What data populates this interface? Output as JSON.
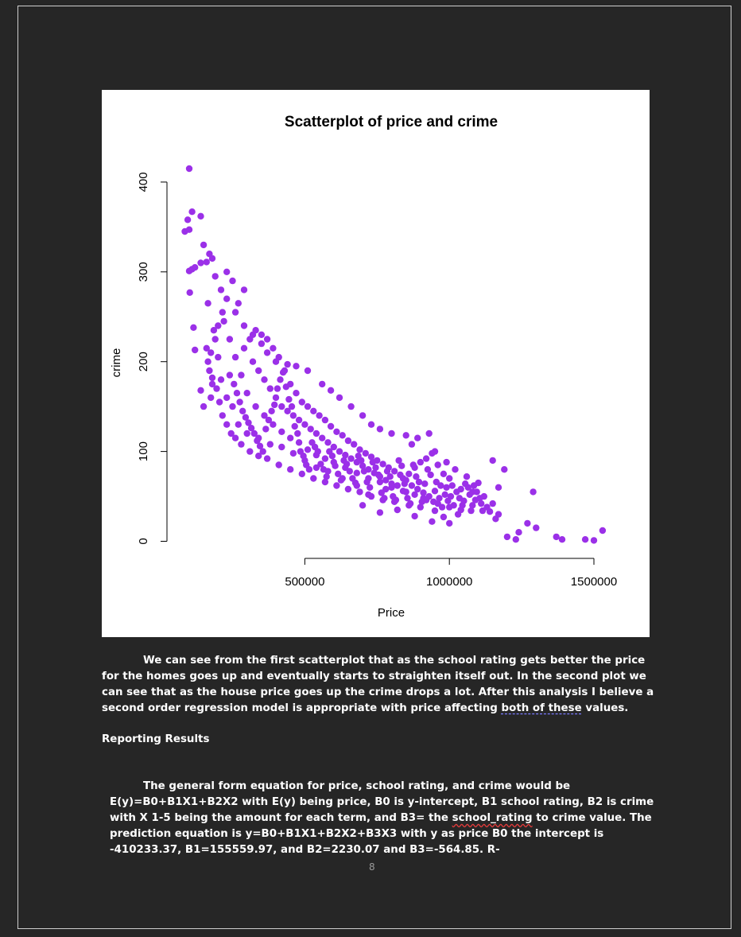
{
  "chart_data": {
    "type": "scatter",
    "title": "Scatterplot of price and crime",
    "xlabel": "Price",
    "ylabel": "crime",
    "xlim": [
      0,
      1550000
    ],
    "ylim": [
      0,
      415
    ],
    "xticks": [
      500000,
      1000000,
      1500000
    ],
    "xtick_labels": [
      "500000",
      "1000000",
      "1500000"
    ],
    "yticks": [
      0,
      100,
      200,
      300,
      400
    ],
    "ytick_labels": [
      "0",
      "100",
      "200",
      "300",
      "400"
    ],
    "grid": false,
    "legend": "none",
    "point_color": "#9b30e8",
    "points": [
      [
        100000,
        415
      ],
      [
        110000,
        367
      ],
      [
        140000,
        362
      ],
      [
        95000,
        358
      ],
      [
        85000,
        345
      ],
      [
        100000,
        347
      ],
      [
        110000,
        303
      ],
      [
        120000,
        305
      ],
      [
        100000,
        301
      ],
      [
        102000,
        277
      ],
      [
        150000,
        330
      ],
      [
        170000,
        320
      ],
      [
        180000,
        315
      ],
      [
        160000,
        311
      ],
      [
        140000,
        310
      ],
      [
        190000,
        295
      ],
      [
        210000,
        280
      ],
      [
        230000,
        270
      ],
      [
        165000,
        265
      ],
      [
        115000,
        238
      ],
      [
        120000,
        213
      ],
      [
        140000,
        168
      ],
      [
        150000,
        150
      ],
      [
        175000,
        160
      ],
      [
        180000,
        175
      ],
      [
        260000,
        255
      ],
      [
        290000,
        240
      ],
      [
        320000,
        230
      ],
      [
        350000,
        220
      ],
      [
        370000,
        210
      ],
      [
        400000,
        200
      ],
      [
        440000,
        197
      ],
      [
        470000,
        195
      ],
      [
        510000,
        190
      ],
      [
        560000,
        175
      ],
      [
        590000,
        168
      ],
      [
        620000,
        160
      ],
      [
        660000,
        150
      ],
      [
        700000,
        140
      ],
      [
        730000,
        130
      ],
      [
        760000,
        125
      ],
      [
        800000,
        120
      ],
      [
        850000,
        118
      ],
      [
        870000,
        108
      ],
      [
        890000,
        115
      ],
      [
        930000,
        120
      ],
      [
        950000,
        100
      ],
      [
        990000,
        88
      ],
      [
        1020000,
        80
      ],
      [
        1060000,
        72
      ],
      [
        1100000,
        65
      ],
      [
        1150000,
        90
      ],
      [
        1170000,
        60
      ],
      [
        1190000,
        80
      ],
      [
        1290000,
        55
      ],
      [
        1160000,
        25
      ],
      [
        1200000,
        5
      ],
      [
        1230000,
        2
      ],
      [
        1240000,
        10
      ],
      [
        1270000,
        20
      ],
      [
        1300000,
        15
      ],
      [
        1370000,
        5
      ],
      [
        1390000,
        2
      ],
      [
        1470000,
        2
      ],
      [
        1500000,
        1
      ],
      [
        1530000,
        12
      ],
      [
        700000,
        40
      ],
      [
        760000,
        32
      ],
      [
        820000,
        35
      ],
      [
        880000,
        28
      ],
      [
        940000,
        22
      ],
      [
        980000,
        27
      ],
      [
        1000000,
        20
      ],
      [
        1030000,
        30
      ],
      [
        1050000,
        45
      ],
      [
        1080000,
        40
      ],
      [
        1120000,
        50
      ],
      [
        990000,
        60
      ],
      [
        910000,
        48
      ],
      [
        850000,
        55
      ],
      [
        780000,
        58
      ],
      [
        720000,
        52
      ],
      [
        680000,
        62
      ],
      [
        630000,
        70
      ],
      [
        580000,
        78
      ],
      [
        540000,
        82
      ],
      [
        500000,
        90
      ],
      [
        460000,
        98
      ],
      [
        420000,
        105
      ],
      [
        380000,
        108
      ],
      [
        340000,
        115
      ],
      [
        300000,
        120
      ],
      [
        270000,
        130
      ],
      [
        250000,
        150
      ],
      [
        230000,
        160
      ],
      [
        210000,
        180
      ],
      [
        200000,
        205
      ],
      [
        190000,
        225
      ],
      [
        220000,
        245
      ],
      [
        240000,
        225
      ],
      [
        260000,
        205
      ],
      [
        280000,
        185
      ],
      [
        300000,
        165
      ],
      [
        330000,
        150
      ],
      [
        360000,
        140
      ],
      [
        390000,
        130
      ],
      [
        420000,
        122
      ],
      [
        450000,
        115
      ],
      [
        480000,
        110
      ],
      [
        510000,
        102
      ],
      [
        540000,
        96
      ],
      [
        570000,
        92
      ],
      [
        600000,
        88
      ],
      [
        640000,
        82
      ],
      [
        680000,
        76
      ],
      [
        720000,
        70
      ],
      [
        760000,
        66
      ],
      [
        800000,
        60
      ],
      [
        840000,
        56
      ],
      [
        880000,
        52
      ],
      [
        920000,
        46
      ],
      [
        960000,
        42
      ],
      [
        1000000,
        38
      ],
      [
        1040000,
        35
      ],
      [
        1080000,
        55
      ],
      [
        1110000,
        42
      ],
      [
        270000,
        265
      ],
      [
        290000,
        280
      ],
      [
        250000,
        290
      ],
      [
        230000,
        300
      ],
      [
        215000,
        255
      ],
      [
        200000,
        240
      ],
      [
        185000,
        235
      ],
      [
        175000,
        210
      ],
      [
        165000,
        200
      ],
      [
        160000,
        215
      ],
      [
        170000,
        190
      ],
      [
        180000,
        182
      ],
      [
        195000,
        170
      ],
      [
        205000,
        155
      ],
      [
        215000,
        140
      ],
      [
        230000,
        130
      ],
      [
        245000,
        120
      ],
      [
        260000,
        115
      ],
      [
        280000,
        108
      ],
      [
        310000,
        100
      ],
      [
        340000,
        95
      ],
      [
        370000,
        92
      ],
      [
        410000,
        85
      ],
      [
        450000,
        80
      ],
      [
        490000,
        75
      ],
      [
        530000,
        70
      ],
      [
        570000,
        66
      ],
      [
        610000,
        62
      ],
      [
        650000,
        58
      ],
      [
        690000,
        55
      ],
      [
        730000,
        50
      ],
      [
        770000,
        46
      ],
      [
        810000,
        44
      ],
      [
        860000,
        40
      ],
      [
        900000,
        38
      ],
      [
        950000,
        34
      ],
      [
        320000,
        200
      ],
      [
        340000,
        190
      ],
      [
        360000,
        180
      ],
      [
        380000,
        170
      ],
      [
        400000,
        160
      ],
      [
        420000,
        150
      ],
      [
        440000,
        145
      ],
      [
        460000,
        140
      ],
      [
        480000,
        135
      ],
      [
        500000,
        130
      ],
      [
        520000,
        125
      ],
      [
        540000,
        120
      ],
      [
        560000,
        115
      ],
      [
        580000,
        110
      ],
      [
        600000,
        105
      ],
      [
        620000,
        100
      ],
      [
        640000,
        96
      ],
      [
        660000,
        92
      ],
      [
        680000,
        88
      ],
      [
        700000,
        84
      ],
      [
        720000,
        80
      ],
      [
        740000,
        76
      ],
      [
        760000,
        72
      ],
      [
        780000,
        68
      ],
      [
        800000,
        64
      ],
      [
        820000,
        62
      ],
      [
        840000,
        70
      ],
      [
        860000,
        75
      ],
      [
        880000,
        82
      ],
      [
        900000,
        88
      ],
      [
        920000,
        92
      ],
      [
        940000,
        98
      ],
      [
        960000,
        85
      ],
      [
        980000,
        75
      ],
      [
        1010000,
        62
      ],
      [
        1040000,
        58
      ],
      [
        1070000,
        52
      ],
      [
        1090000,
        46
      ],
      [
        1130000,
        38
      ],
      [
        1140000,
        33
      ],
      [
        1150000,
        42
      ],
      [
        1170000,
        30
      ],
      [
        290000,
        215
      ],
      [
        310000,
        225
      ],
      [
        330000,
        235
      ],
      [
        350000,
        230
      ],
      [
        370000,
        225
      ],
      [
        390000,
        215
      ],
      [
        410000,
        205
      ],
      [
        430000,
        190
      ],
      [
        450000,
        175
      ],
      [
        470000,
        165
      ],
      [
        490000,
        155
      ],
      [
        510000,
        150
      ],
      [
        530000,
        145
      ],
      [
        550000,
        140
      ],
      [
        570000,
        135
      ],
      [
        590000,
        128
      ],
      [
        610000,
        122
      ],
      [
        630000,
        118
      ],
      [
        650000,
        112
      ],
      [
        670000,
        108
      ],
      [
        690000,
        102
      ],
      [
        710000,
        98
      ],
      [
        730000,
        94
      ],
      [
        750000,
        90
      ],
      [
        770000,
        86
      ],
      [
        790000,
        82
      ],
      [
        810000,
        78
      ],
      [
        830000,
        74
      ],
      [
        850000,
        68
      ],
      [
        870000,
        62
      ],
      [
        890000,
        58
      ],
      [
        910000,
        54
      ],
      [
        930000,
        50
      ],
      [
        950000,
        56
      ],
      [
        970000,
        62
      ],
      [
        1000000,
        70
      ],
      [
        240000,
        185
      ],
      [
        255000,
        175
      ],
      [
        265000,
        165
      ],
      [
        275000,
        155
      ],
      [
        285000,
        145
      ],
      [
        295000,
        138
      ],
      [
        305000,
        132
      ],
      [
        315000,
        126
      ],
      [
        325000,
        120
      ],
      [
        335000,
        112
      ],
      [
        345000,
        106
      ],
      [
        355000,
        100
      ],
      [
        365000,
        125
      ],
      [
        375000,
        135
      ],
      [
        385000,
        145
      ],
      [
        395000,
        152
      ],
      [
        405000,
        170
      ],
      [
        415000,
        180
      ],
      [
        425000,
        188
      ],
      [
        435000,
        172
      ],
      [
        445000,
        158
      ],
      [
        455000,
        150
      ],
      [
        465000,
        128
      ],
      [
        475000,
        120
      ],
      [
        485000,
        100
      ],
      [
        495000,
        95
      ],
      [
        505000,
        85
      ],
      [
        515000,
        80
      ],
      [
        525000,
        110
      ],
      [
        535000,
        105
      ],
      [
        545000,
        100
      ],
      [
        555000,
        86
      ],
      [
        565000,
        80
      ],
      [
        575000,
        72
      ],
      [
        585000,
        100
      ],
      [
        595000,
        95
      ],
      [
        605000,
        84
      ],
      [
        615000,
        75
      ],
      [
        625000,
        68
      ],
      [
        635000,
        90
      ],
      [
        645000,
        86
      ],
      [
        655000,
        78
      ],
      [
        665000,
        70
      ],
      [
        675000,
        65
      ],
      [
        685000,
        95
      ],
      [
        695000,
        90
      ],
      [
        705000,
        78
      ],
      [
        715000,
        66
      ],
      [
        725000,
        60
      ],
      [
        735000,
        88
      ],
      [
        745000,
        82
      ],
      [
        755000,
        74
      ],
      [
        765000,
        54
      ],
      [
        775000,
        48
      ],
      [
        785000,
        78
      ],
      [
        795000,
        72
      ],
      [
        805000,
        50
      ],
      [
        815000,
        46
      ],
      [
        825000,
        90
      ],
      [
        835000,
        84
      ],
      [
        845000,
        64
      ],
      [
        855000,
        48
      ],
      [
        865000,
        42
      ],
      [
        875000,
        85
      ],
      [
        885000,
        72
      ],
      [
        895000,
        66
      ],
      [
        905000,
        44
      ],
      [
        915000,
        64
      ],
      [
        925000,
        80
      ],
      [
        935000,
        74
      ],
      [
        945000,
        44
      ],
      [
        955000,
        66
      ],
      [
        965000,
        48
      ],
      [
        975000,
        38
      ],
      [
        985000,
        52
      ],
      [
        995000,
        45
      ],
      [
        1005000,
        50
      ],
      [
        1015000,
        40
      ],
      [
        1025000,
        55
      ],
      [
        1035000,
        48
      ],
      [
        1045000,
        40
      ],
      [
        1055000,
        64
      ],
      [
        1065000,
        60
      ],
      [
        1075000,
        34
      ],
      [
        1085000,
        62
      ],
      [
        1095000,
        55
      ],
      [
        1105000,
        48
      ],
      [
        1115000,
        34
      ]
    ]
  },
  "paragraph1": {
    "text_before": "We can see from the first scatterplot that as the school rating gets better the price for the homes goes up and eventually starts to straighten itself out. In the second plot we can see that as the house price goes up the crime drops a lot. After this analysis I believe a second order regression model is appropriate with price affecting ",
    "underlined": "both of these",
    "text_after": " values."
  },
  "heading": "Reporting Results",
  "paragraph2": {
    "text_before": "The general form equation for price, school rating, and crime would be E(y)=B0+B1X1+B2X2 with E(y) being price, B0 is y-intercept, B1 school rating, B2 is crime with X 1-5 being the amount for each term, and B3= the ",
    "squiggled": "school_rating",
    "text_after": " to crime value. The prediction equation is y=B0+B1X1+B2X2+B3X3 with y as price B0 the intercept is -410233.37, B1=155559.97, and B2=2230.07 and B3=-564.85. R-"
  },
  "page_number": "8"
}
